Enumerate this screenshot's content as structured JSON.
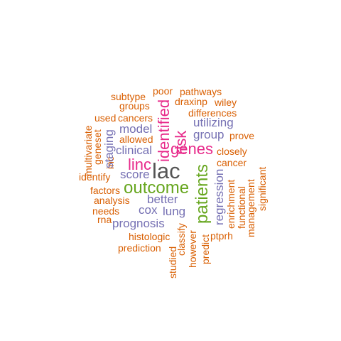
{
  "colors": {
    "orange": "#d95f02",
    "purple": "#7570b3",
    "magenta": "#e7298a",
    "green": "#66a61e",
    "gray": "#555555"
  },
  "words": {
    "lac": "lac",
    "outcome": "outcome",
    "patients": "patients",
    "genes": "genes",
    "identified": "identified",
    "risk": "risk",
    "linc": "linc",
    "prognosis": "prognosis",
    "model": "model",
    "clinical": "clinical",
    "score": "score",
    "better": "better",
    "cox": "cox",
    "lung": "lung",
    "group": "group",
    "utilizing": "utilizing",
    "regression": "regression",
    "staging": "staging",
    "pathways": "pathways",
    "poor": "poor",
    "subtype": "subtype",
    "groups": "groups",
    "draxinp": "draxinp",
    "wiley": "wiley",
    "differences": "differences",
    "used": "used",
    "cancers": "cancers",
    "prove": "prove",
    "allowed": "allowed",
    "multivariate": "multivariate",
    "geneset": "geneset",
    "inc": "inc",
    "closely": "closely",
    "cancer": "cancer",
    "identify": "identify",
    "factors": "factors",
    "analysis": "analysis",
    "needs": "needs",
    "rna": "rna",
    "significant": "significant",
    "functional": "functional",
    "management": "management",
    "enrichment": "enrichment",
    "ptprh": "ptprh",
    "histologic": "histologic",
    "prediction": "prediction",
    "classify": "classify",
    "predict": "predict",
    "however": "however",
    "studied": "studied"
  }
}
